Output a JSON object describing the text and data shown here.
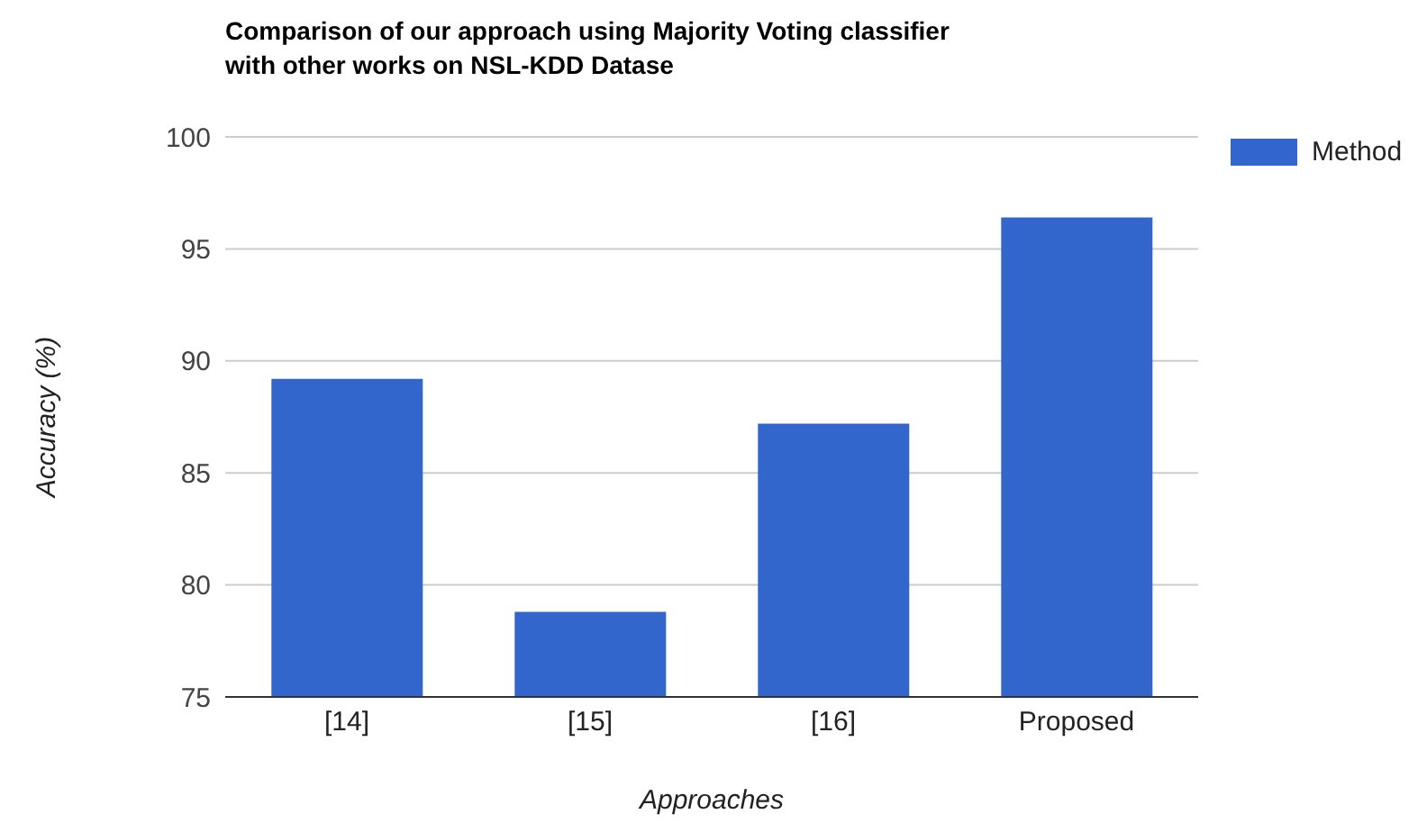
{
  "chart_data": {
    "type": "bar",
    "title": "Comparison of our approach using Majority Voting classifier with other works on NSL-KDD Datase",
    "xlabel": "Approaches",
    "ylabel": "Accuracy (%)",
    "categories": [
      "[14]",
      "[15]",
      "[16]",
      "Proposed"
    ],
    "series": [
      {
        "name": "Method",
        "color": "#3366cc",
        "values": [
          89.2,
          78.8,
          87.2,
          96.4
        ]
      }
    ],
    "ylim": [
      75,
      100
    ],
    "yticks": [
      75,
      80,
      85,
      90,
      95,
      100
    ],
    "grid": "y",
    "legend": "top right"
  }
}
